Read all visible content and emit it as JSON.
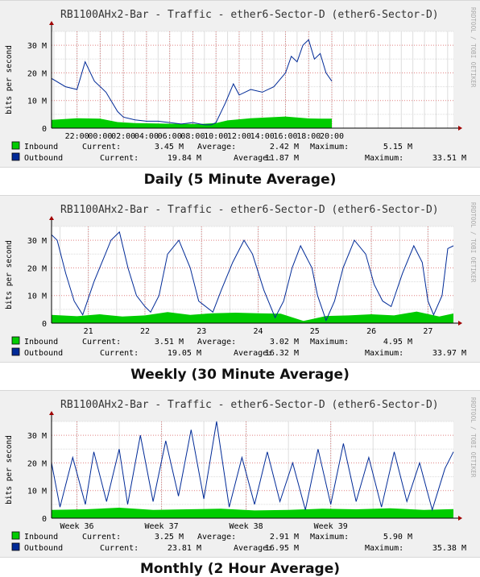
{
  "colors": {
    "inbound": "#00cc00",
    "outbound": "#002a97",
    "grid": "#e08080",
    "axis": "#000000",
    "panel_bg": "#f0f0f0",
    "plot_bg": "#ffffff"
  },
  "ylabel": "bits per second",
  "watermark": "RRDTOOL / TOBI OETIKER",
  "chart_data": [
    {
      "type": "area",
      "title": "RB1100AHx2-Bar - Traffic - ether6-Sector-D (ether6-Sector-D)",
      "caption": "Daily (5 Minute Average)",
      "ylabel": "bits per second",
      "ylim": [
        0,
        35
      ],
      "yticks": [
        {
          "v": 0,
          "label": "0"
        },
        {
          "v": 10,
          "label": "10 M"
        },
        {
          "v": 20,
          "label": "20 M"
        },
        {
          "v": 30,
          "label": "30 M"
        }
      ],
      "x_range": [
        -2.2,
        32.5
      ],
      "xticks": [
        {
          "v": 0,
          "label": "22:00"
        },
        {
          "v": 2,
          "label": "00:00"
        },
        {
          "v": 4,
          "label": "02:00"
        },
        {
          "v": 6,
          "label": "04:00"
        },
        {
          "v": 8,
          "label": "06:00"
        },
        {
          "v": 10,
          "label": "08:00"
        },
        {
          "v": 12,
          "label": "10:00"
        },
        {
          "v": 14,
          "label": "12:00"
        },
        {
          "v": 16,
          "label": "14:00"
        },
        {
          "v": 18,
          "label": "16:00"
        },
        {
          "v": 20,
          "label": "18:00"
        },
        {
          "v": 22,
          "label": "20:00"
        }
      ],
      "x_unit": "hours since 22:00",
      "series": [
        {
          "name": "Inbound",
          "fill": "area",
          "x": [
            -2.2,
            0,
            2,
            3.5,
            5,
            8,
            10.5,
            12,
            13,
            15,
            18,
            20,
            21,
            22
          ],
          "values": [
            3.0,
            3.6,
            3.4,
            2.2,
            1.8,
            1.6,
            1.5,
            1.8,
            2.8,
            3.6,
            4.2,
            3.5,
            3.4,
            3.45
          ]
        },
        {
          "name": "Outbound",
          "fill": "line",
          "x": [
            -2.2,
            -1,
            0,
            0.7,
            1.5,
            2.5,
            3.5,
            4,
            5,
            6,
            7,
            8,
            9,
            10,
            11,
            11.6,
            12,
            12.8,
            13.5,
            14,
            15,
            16,
            17,
            18,
            18.5,
            19,
            19.5,
            20,
            20.5,
            21,
            21.5,
            22
          ],
          "values": [
            18,
            15,
            14,
            24,
            17,
            13,
            6,
            4,
            3,
            2.5,
            2.5,
            2,
            1.5,
            2,
            1.2,
            1.2,
            2,
            9,
            16,
            12,
            14,
            13,
            15,
            20,
            26,
            24,
            30,
            32,
            25,
            27,
            20,
            17
          ]
        }
      ],
      "legend": [
        {
          "name": "Inbound",
          "current": "3.45 M",
          "average": "2.42 M",
          "maximum": "5.15 M"
        },
        {
          "name": "Outbound",
          "current": "19.84 M",
          "average": "11.87 M",
          "maximum": "33.51 M"
        }
      ]
    },
    {
      "type": "area",
      "title": "RB1100AHx2-Bar - Traffic - ether6-Sector-D (ether6-Sector-D)",
      "caption": "Weekly (30 Minute Average)",
      "ylabel": "bits per second",
      "ylim": [
        0,
        35
      ],
      "yticks": [
        {
          "v": 0,
          "label": "0"
        },
        {
          "v": 10,
          "label": "10 M"
        },
        {
          "v": 20,
          "label": "20 M"
        },
        {
          "v": 30,
          "label": "30 M"
        }
      ],
      "x_range": [
        20.35,
        27.45
      ],
      "xticks": [
        {
          "v": 21,
          "label": "21"
        },
        {
          "v": 22,
          "label": "22"
        },
        {
          "v": 23,
          "label": "23"
        },
        {
          "v": 24,
          "label": "24"
        },
        {
          "v": 25,
          "label": "25"
        },
        {
          "v": 26,
          "label": "26"
        },
        {
          "v": 27,
          "label": "27"
        }
      ],
      "x_unit": "day of month",
      "series": [
        {
          "name": "Inbound",
          "fill": "area",
          "x": [
            20.35,
            20.8,
            21.2,
            21.6,
            22.0,
            22.4,
            22.8,
            23.2,
            23.6,
            24.0,
            24.4,
            24.8,
            25.2,
            25.6,
            26.0,
            26.4,
            26.8,
            27.2,
            27.45
          ],
          "values": [
            3.0,
            2.5,
            3.2,
            2.4,
            2.8,
            4.0,
            3.0,
            3.6,
            3.8,
            3.6,
            3.4,
            0.8,
            2.6,
            2.8,
            3.2,
            2.8,
            4.2,
            2.4,
            3.5
          ]
        },
        {
          "name": "Outbound",
          "fill": "line",
          "x": [
            20.35,
            20.45,
            20.6,
            20.75,
            20.9,
            21.1,
            21.3,
            21.4,
            21.55,
            21.7,
            21.85,
            22.0,
            22.1,
            22.25,
            22.4,
            22.6,
            22.8,
            22.95,
            23.2,
            23.35,
            23.55,
            23.75,
            23.9,
            24.1,
            24.3,
            24.45,
            24.6,
            24.75,
            24.95,
            25.05,
            25.2,
            25.35,
            25.5,
            25.7,
            25.9,
            26.05,
            26.2,
            26.35,
            26.55,
            26.75,
            26.9,
            27.0,
            27.1,
            27.25,
            27.35,
            27.45
          ],
          "values": [
            32,
            30,
            18,
            8,
            3,
            15,
            25,
            30,
            33,
            20,
            10,
            6,
            4,
            10,
            25,
            30,
            20,
            8,
            4,
            12,
            22,
            30,
            25,
            12,
            2,
            8,
            20,
            28,
            20,
            10,
            1,
            8,
            20,
            30,
            25,
            14,
            8,
            6,
            18,
            28,
            22,
            8,
            3,
            10,
            27,
            28
          ]
        }
      ],
      "legend": [
        {
          "name": "Inbound",
          "current": "3.51 M",
          "average": "3.02 M",
          "maximum": "4.95 M"
        },
        {
          "name": "Outbound",
          "current": "19.05 M",
          "average": "16.32 M",
          "maximum": "33.97 M"
        }
      ]
    },
    {
      "type": "area",
      "title": "RB1100AHx2-Bar - Traffic - ether6-Sector-D (ether6-Sector-D)",
      "caption": "Monthly (2 Hour Average)",
      "ylabel": "bits per second",
      "ylim": [
        0,
        35
      ],
      "yticks": [
        {
          "v": 0,
          "label": "0"
        },
        {
          "v": 10,
          "label": "10 M"
        },
        {
          "v": 20,
          "label": "20 M"
        },
        {
          "v": 30,
          "label": "30 M"
        }
      ],
      "x_range": [
        35.2,
        39.95
      ],
      "xticks": [
        {
          "v": 35.5,
          "label": "Week 36"
        },
        {
          "v": 36.5,
          "label": "Week 37"
        },
        {
          "v": 37.5,
          "label": "Week 38"
        },
        {
          "v": 38.5,
          "label": "Week 39"
        }
      ],
      "x_unit": "week number",
      "series": [
        {
          "name": "Inbound",
          "fill": "area",
          "x": [
            35.2,
            35.6,
            36.0,
            36.4,
            36.8,
            37.2,
            37.6,
            38.0,
            38.4,
            38.8,
            39.2,
            39.6,
            39.95
          ],
          "values": [
            3.0,
            3.2,
            3.8,
            3.0,
            3.2,
            3.4,
            2.8,
            3.0,
            3.4,
            3.2,
            3.6,
            3.0,
            3.3
          ]
        },
        {
          "name": "Outbound",
          "fill": "line",
          "x": [
            35.2,
            35.3,
            35.45,
            35.6,
            35.7,
            35.85,
            36.0,
            36.1,
            36.25,
            36.4,
            36.55,
            36.7,
            36.85,
            37.0,
            37.15,
            37.3,
            37.45,
            37.6,
            37.75,
            37.9,
            38.05,
            38.2,
            38.35,
            38.5,
            38.65,
            38.8,
            38.95,
            39.1,
            39.25,
            39.4,
            39.55,
            39.7,
            39.85,
            39.95
          ],
          "values": [
            20,
            4,
            22,
            5,
            24,
            6,
            25,
            5,
            30,
            6,
            28,
            8,
            32,
            7,
            35,
            4,
            22,
            5,
            24,
            6,
            20,
            3,
            25,
            5,
            27,
            6,
            22,
            4,
            24,
            6,
            20,
            3,
            18,
            24
          ]
        }
      ],
      "legend": [
        {
          "name": "Inbound",
          "current": "3.25 M",
          "average": "2.91 M",
          "maximum": "5.90 M"
        },
        {
          "name": "Outbound",
          "current": "23.81 M",
          "average": "16.95 M",
          "maximum": "35.38 M"
        }
      ]
    }
  ]
}
